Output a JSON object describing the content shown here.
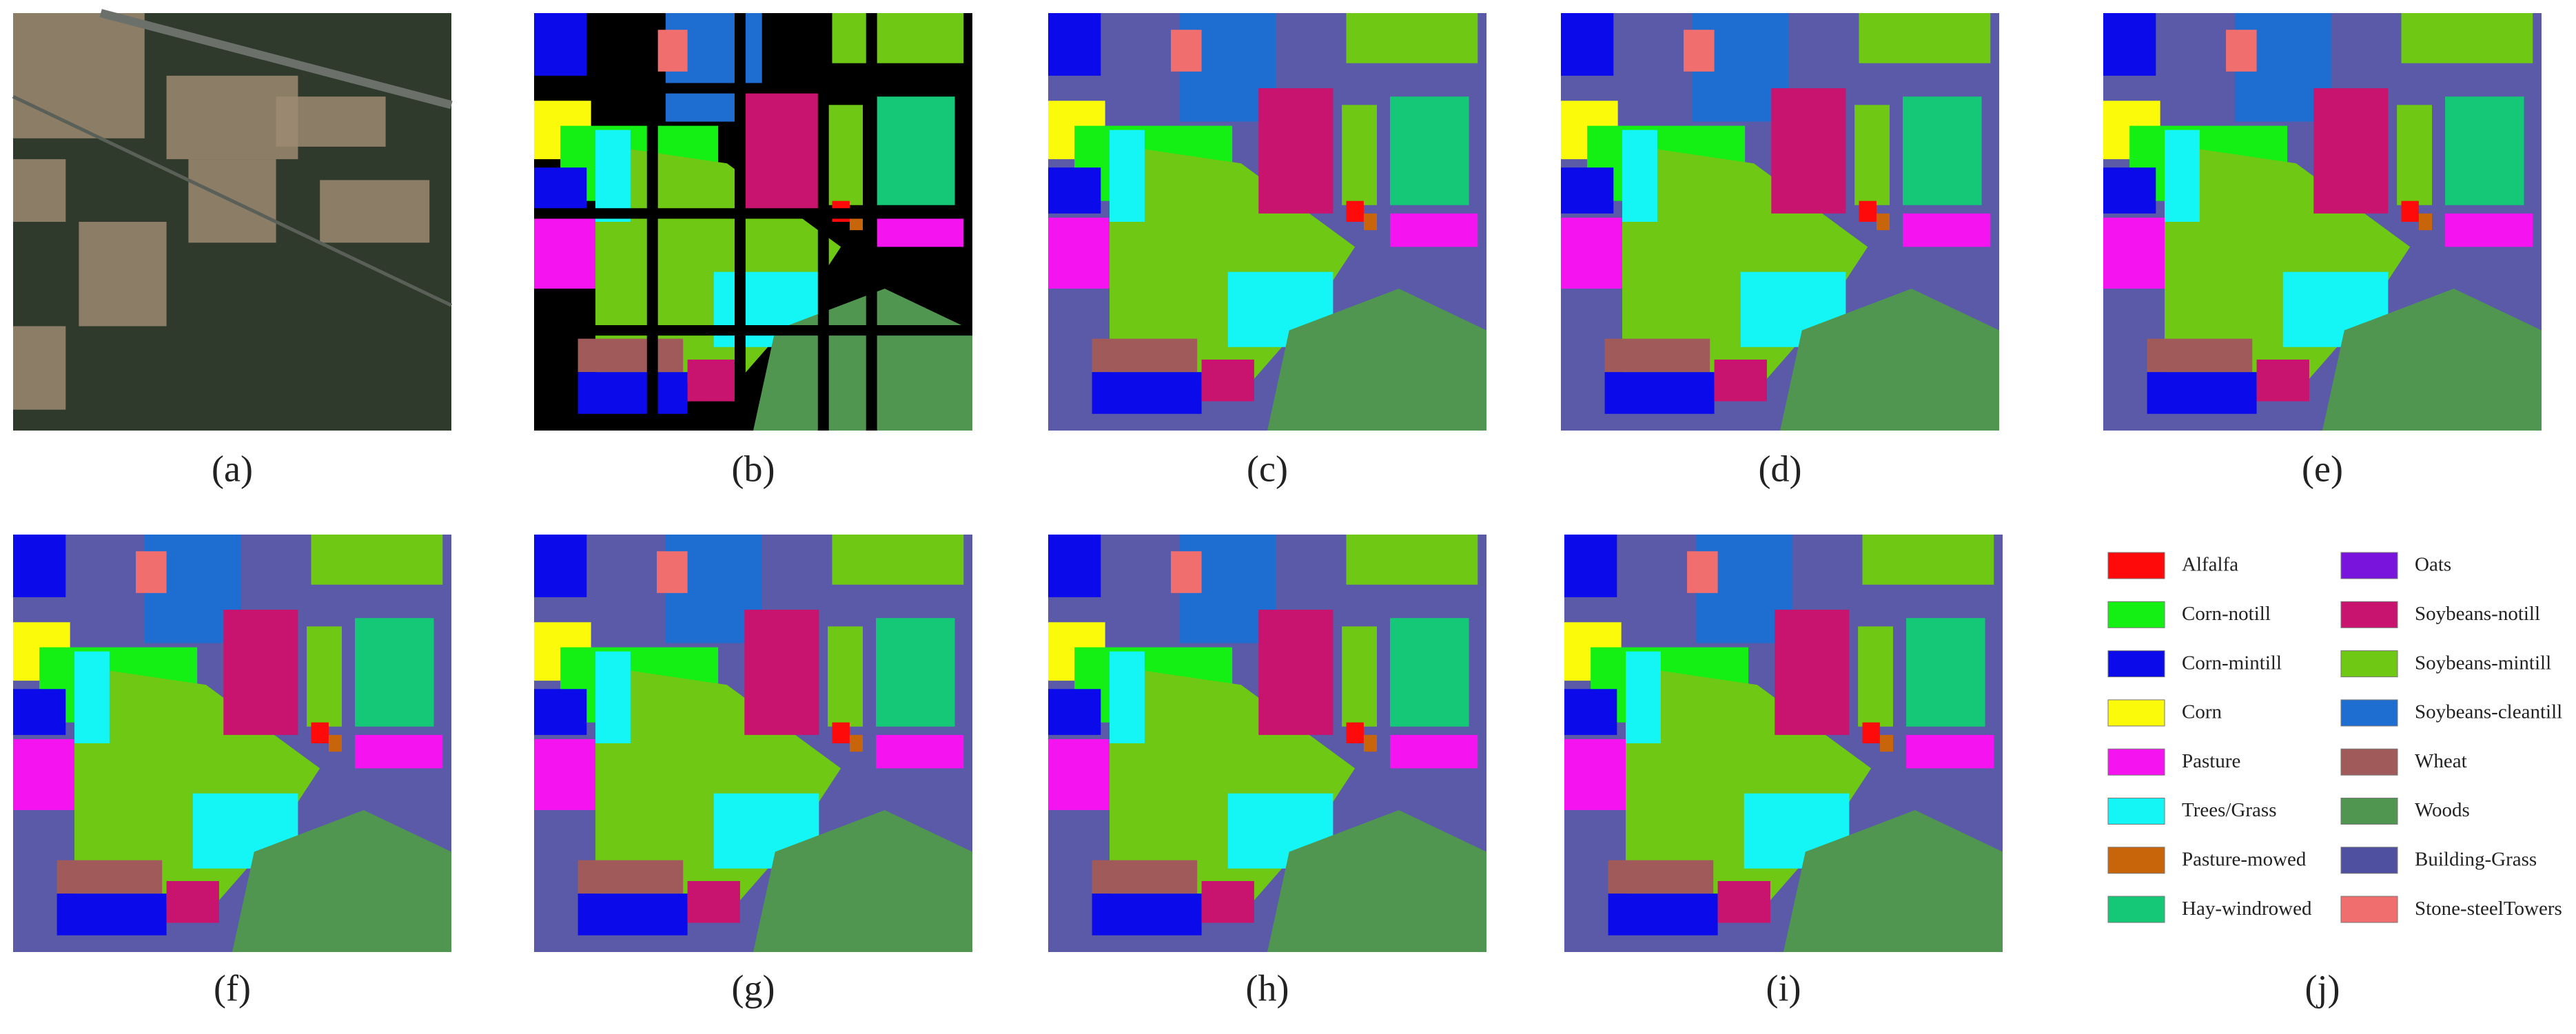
{
  "panels": [
    {
      "label": "(a)"
    },
    {
      "label": "(b)"
    },
    {
      "label": "(c)"
    },
    {
      "label": "(d)"
    },
    {
      "label": "(e)"
    },
    {
      "label": "(f)"
    },
    {
      "label": "(g)"
    },
    {
      "label": "(h)"
    },
    {
      "label": "(i)"
    },
    {
      "label": "(j)"
    }
  ],
  "legend": [
    {
      "name": "Alfalfa",
      "color": "#ff0a0a"
    },
    {
      "name": "Corn-notill",
      "color": "#14f014"
    },
    {
      "name": "Corn-mintill",
      "color": "#0a0aeb"
    },
    {
      "name": "Corn",
      "color": "#fafa0a"
    },
    {
      "name": "Pasture",
      "color": "#f514f0"
    },
    {
      "name": "Trees/Grass",
      "color": "#14f5f5"
    },
    {
      "name": "Pasture-mowed",
      "color": "#c8640a"
    },
    {
      "name": "Hay-windrowed",
      "color": "#14c878"
    },
    {
      "name": "Oats",
      "color": "#7814dc"
    },
    {
      "name": "Soybeans-notill",
      "color": "#c8146e"
    },
    {
      "name": "Soybeans-mintill",
      "color": "#6ec814"
    },
    {
      "name": "Soybeans-cleantill",
      "color": "#1e6ed2"
    },
    {
      "name": "Wheat",
      "color": "#a05a5a"
    },
    {
      "name": "Woods",
      "color": "#509650"
    },
    {
      "name": "Building-Grass",
      "color": "#5050a0"
    },
    {
      "name": "Stone-steelTowers",
      "color": "#f06e6e"
    }
  ]
}
